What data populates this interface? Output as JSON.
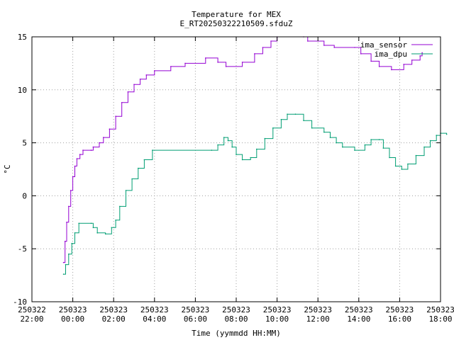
{
  "chart_data": {
    "type": "line",
    "title": "Temperature for MEX",
    "subtitle": "E_RT20250322210509.sfduZ",
    "xlabel": "Time (yymmdd HH:MM)",
    "ylabel": "°C",
    "ylim": [
      -10,
      15
    ],
    "yticks": [
      -10,
      -5,
      0,
      5,
      10,
      15
    ],
    "xlim_hours": [
      0,
      20
    ],
    "xticks": [
      {
        "h": 0,
        "date": "250322",
        "time": "22:00"
      },
      {
        "h": 2,
        "date": "250323",
        "time": "00:00"
      },
      {
        "h": 4,
        "date": "250323",
        "time": "02:00"
      },
      {
        "h": 6,
        "date": "250323",
        "time": "04:00"
      },
      {
        "h": 8,
        "date": "250323",
        "time": "06:00"
      },
      {
        "h": 10,
        "date": "250323",
        "time": "08:00"
      },
      {
        "h": 12,
        "date": "250323",
        "time": "10:00"
      },
      {
        "h": 14,
        "date": "250323",
        "time": "12:00"
      },
      {
        "h": 16,
        "date": "250323",
        "time": "14:00"
      },
      {
        "h": 18,
        "date": "250323",
        "time": "16:00"
      },
      {
        "h": 20,
        "date": "250323",
        "time": "18:00"
      }
    ],
    "grid": true,
    "legend": "top-right",
    "series": [
      {
        "name": "ima_sensor",
        "color": "#9400d3",
        "points": [
          [
            1.55,
            -6.3
          ],
          [
            1.62,
            -4.3
          ],
          [
            1.7,
            -2.5
          ],
          [
            1.8,
            -1.0
          ],
          [
            1.9,
            0.5
          ],
          [
            2.0,
            1.8
          ],
          [
            2.1,
            2.8
          ],
          [
            2.2,
            3.5
          ],
          [
            2.35,
            3.9
          ],
          [
            2.5,
            4.3
          ],
          [
            2.9,
            4.3
          ],
          [
            3.0,
            4.6
          ],
          [
            3.3,
            5.0
          ],
          [
            3.5,
            5.5
          ],
          [
            3.8,
            6.3
          ],
          [
            4.1,
            7.5
          ],
          [
            4.4,
            8.8
          ],
          [
            4.7,
            9.8
          ],
          [
            5.0,
            10.5
          ],
          [
            5.3,
            11.0
          ],
          [
            5.6,
            11.4
          ],
          [
            6.0,
            11.8
          ],
          [
            6.8,
            12.2
          ],
          [
            7.5,
            12.5
          ],
          [
            8.5,
            13.0
          ],
          [
            9.1,
            12.6
          ],
          [
            9.5,
            12.2
          ],
          [
            10.3,
            12.6
          ],
          [
            10.9,
            13.4
          ],
          [
            11.3,
            14.0
          ],
          [
            11.7,
            14.6
          ],
          [
            12.0,
            15.0
          ],
          [
            13.3,
            15.0
          ],
          [
            13.5,
            14.6
          ],
          [
            14.3,
            14.2
          ],
          [
            14.8,
            14.0
          ],
          [
            15.8,
            14.0
          ],
          [
            16.1,
            13.4
          ],
          [
            16.6,
            12.7
          ],
          [
            17.0,
            12.2
          ],
          [
            17.6,
            11.9
          ],
          [
            18.2,
            12.4
          ],
          [
            18.6,
            12.8
          ],
          [
            19.0,
            13.2
          ],
          [
            19.1,
            13.5
          ]
        ]
      },
      {
        "name": "ima_dpu",
        "color": "#009e73",
        "points": [
          [
            1.55,
            -7.4
          ],
          [
            1.65,
            -6.5
          ],
          [
            1.8,
            -5.5
          ],
          [
            1.95,
            -4.5
          ],
          [
            2.1,
            -3.5
          ],
          [
            2.3,
            -2.6
          ],
          [
            2.9,
            -2.6
          ],
          [
            3.0,
            -3.0
          ],
          [
            3.2,
            -3.5
          ],
          [
            3.6,
            -3.6
          ],
          [
            3.9,
            -3.0
          ],
          [
            4.1,
            -2.3
          ],
          [
            4.3,
            -1.0
          ],
          [
            4.6,
            0.5
          ],
          [
            4.9,
            1.6
          ],
          [
            5.2,
            2.6
          ],
          [
            5.5,
            3.4
          ],
          [
            5.9,
            4.3
          ],
          [
            8.8,
            4.3
          ],
          [
            9.1,
            4.8
          ],
          [
            9.4,
            5.5
          ],
          [
            9.6,
            5.2
          ],
          [
            9.8,
            4.6
          ],
          [
            10.0,
            3.9
          ],
          [
            10.3,
            3.4
          ],
          [
            10.7,
            3.6
          ],
          [
            11.0,
            4.4
          ],
          [
            11.4,
            5.4
          ],
          [
            11.8,
            6.4
          ],
          [
            12.2,
            7.2
          ],
          [
            12.5,
            7.7
          ],
          [
            12.9,
            7.7
          ],
          [
            13.3,
            7.1
          ],
          [
            13.7,
            6.4
          ],
          [
            14.3,
            6.0
          ],
          [
            14.6,
            5.5
          ],
          [
            14.9,
            5.0
          ],
          [
            15.2,
            4.6
          ],
          [
            15.8,
            4.3
          ],
          [
            16.3,
            4.8
          ],
          [
            16.6,
            5.3
          ],
          [
            17.0,
            5.3
          ],
          [
            17.2,
            4.5
          ],
          [
            17.5,
            3.6
          ],
          [
            17.8,
            2.8
          ],
          [
            18.1,
            2.5
          ],
          [
            18.4,
            3.0
          ],
          [
            18.8,
            3.8
          ],
          [
            19.2,
            4.6
          ],
          [
            19.5,
            5.2
          ],
          [
            19.8,
            5.7
          ],
          [
            20.0,
            5.9
          ],
          [
            20.3,
            5.8
          ]
        ]
      }
    ]
  }
}
